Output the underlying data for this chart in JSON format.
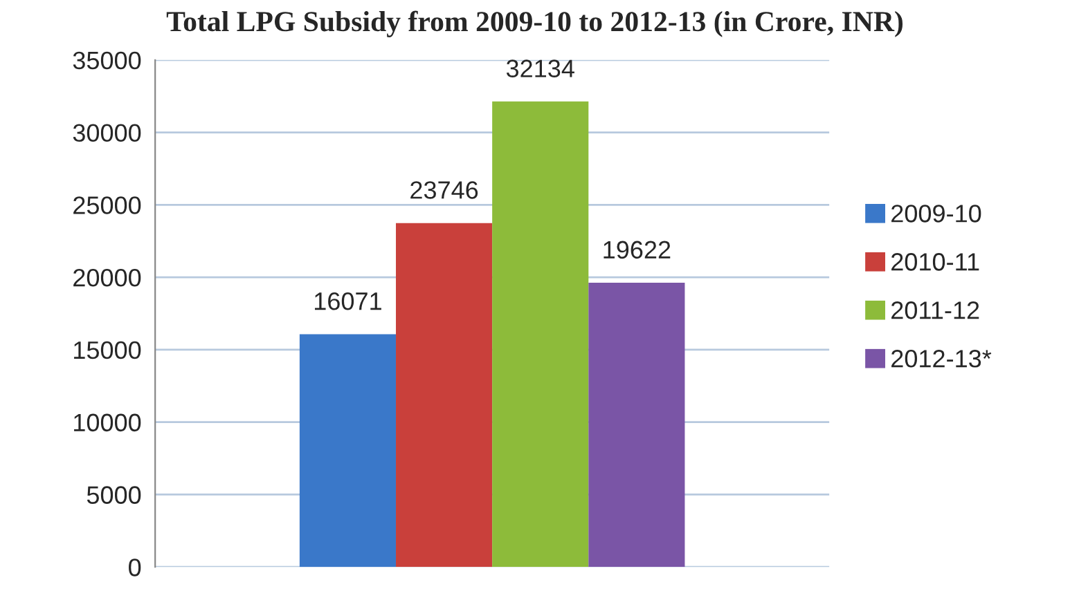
{
  "chart_data": {
    "type": "bar",
    "title": "Total LPG Subsidy from 2009-10 to 2012-13 (in Crore, INR)",
    "categories": [
      null
    ],
    "series": [
      {
        "name": "2009-10",
        "color": "#3a78c9",
        "values": [
          16071
        ]
      },
      {
        "name": "2010-11",
        "color": "#c9403b",
        "values": [
          23746
        ]
      },
      {
        "name": "2011-12",
        "color": "#8dbb3a",
        "values": [
          32134
        ]
      },
      {
        "name": "2012-13*",
        "color": "#7a55a6",
        "values": [
          19622
        ]
      }
    ],
    "ylim": [
      0,
      35000
    ],
    "yticks": [
      0,
      5000,
      10000,
      15000,
      20000,
      25000,
      30000,
      35000
    ],
    "grid": "y",
    "legend": "right",
    "data_labels": true
  }
}
